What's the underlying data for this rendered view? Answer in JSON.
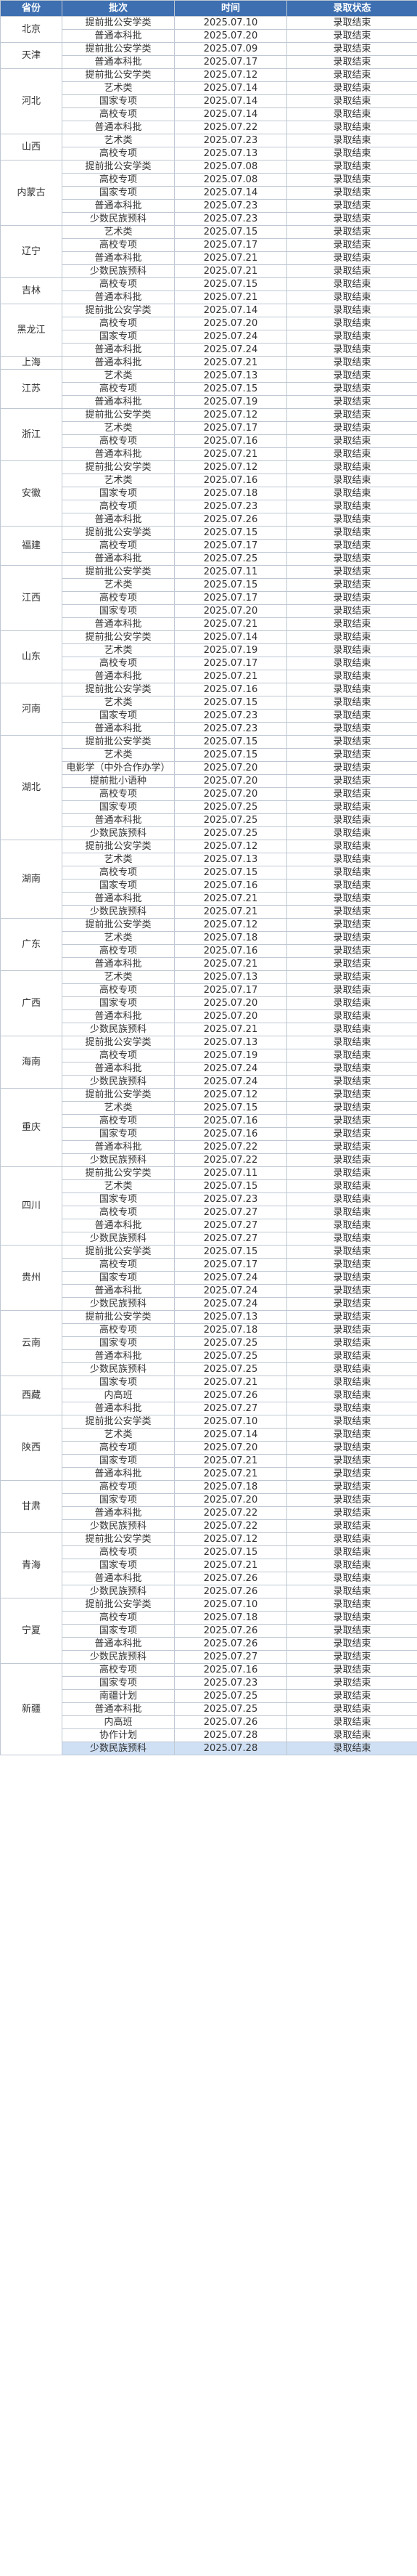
{
  "columns": [
    "省份",
    "批次",
    "时间",
    "录取状态"
  ],
  "status_text": "录取结束",
  "colors": {
    "header_bg": "#3d6fb1",
    "header_text": "#ffffff",
    "grid": "#bfc8d3",
    "highlight_row": "#cfe0f5"
  },
  "provinces": [
    {
      "name": "北京",
      "rows": [
        [
          "提前批公安学类",
          "2025.07.10"
        ],
        [
          "普通本科批",
          "2025.07.20"
        ]
      ]
    },
    {
      "name": "天津",
      "rows": [
        [
          "提前批公安学类",
          "2025.07.09"
        ],
        [
          "普通本科批",
          "2025.07.17"
        ]
      ]
    },
    {
      "name": "河北",
      "rows": [
        [
          "提前批公安学类",
          "2025.07.12"
        ],
        [
          "艺术类",
          "2025.07.14"
        ],
        [
          "国家专项",
          "2025.07.14"
        ],
        [
          "高校专项",
          "2025.07.14"
        ],
        [
          "普通本科批",
          "2025.07.22"
        ]
      ]
    },
    {
      "name": "山西",
      "rows": [
        [
          "艺术类",
          "2025.07.23"
        ],
        [
          "高校专项",
          "2025.07.13"
        ]
      ]
    },
    {
      "name": "内蒙古",
      "rows": [
        [
          "提前批公安学类",
          "2025.07.08"
        ],
        [
          "高校专项",
          "2025.07.08"
        ],
        [
          "国家专项",
          "2025.07.14"
        ],
        [
          "普通本科批",
          "2025.07.23"
        ],
        [
          "少数民族预科",
          "2025.07.23"
        ]
      ]
    },
    {
      "name": "辽宁",
      "rows": [
        [
          "艺术类",
          "2025.07.15"
        ],
        [
          "高校专项",
          "2025.07.17"
        ],
        [
          "普通本科批",
          "2025.07.21"
        ],
        [
          "少数民族预科",
          "2025.07.21"
        ]
      ]
    },
    {
      "name": "吉林",
      "rows": [
        [
          "高校专项",
          "2025.07.15"
        ],
        [
          "普通本科批",
          "2025.07.21"
        ]
      ]
    },
    {
      "name": "黑龙江",
      "rows": [
        [
          "提前批公安学类",
          "2025.07.14"
        ],
        [
          "高校专项",
          "2025.07.20"
        ],
        [
          "国家专项",
          "2025.07.24"
        ],
        [
          "普通本科批",
          "2025.07.24"
        ]
      ]
    },
    {
      "name": "上海",
      "rows": [
        [
          "普通本科批",
          "2025.07.21"
        ]
      ]
    },
    {
      "name": "江苏",
      "rows": [
        [
          "艺术类",
          "2025.07.13"
        ],
        [
          "高校专项",
          "2025.07.15"
        ],
        [
          "普通本科批",
          "2025.07.19"
        ]
      ]
    },
    {
      "name": "浙江",
      "rows": [
        [
          "提前批公安学类",
          "2025.07.12"
        ],
        [
          "艺术类",
          "2025.07.17"
        ],
        [
          "高校专项",
          "2025.07.16"
        ],
        [
          "普通本科批",
          "2025.07.21"
        ]
      ]
    },
    {
      "name": "安徽",
      "rows": [
        [
          "提前批公安学类",
          "2025.07.12"
        ],
        [
          "艺术类",
          "2025.07.16"
        ],
        [
          "国家专项",
          "2025.07.18"
        ],
        [
          "高校专项",
          "2025.07.23"
        ],
        [
          "普通本科批",
          "2025.07.26"
        ]
      ]
    },
    {
      "name": "福建",
      "rows": [
        [
          "提前批公安学类",
          "2025.07.15"
        ],
        [
          "高校专项",
          "2025.07.17"
        ],
        [
          "普通本科批",
          "2025.07.25"
        ]
      ]
    },
    {
      "name": "江西",
      "rows": [
        [
          "提前批公安学类",
          "2025.07.11"
        ],
        [
          "艺术类",
          "2025.07.15"
        ],
        [
          "高校专项",
          "2025.07.17"
        ],
        [
          "国家专项",
          "2025.07.20"
        ],
        [
          "普通本科批",
          "2025.07.21"
        ]
      ]
    },
    {
      "name": "山东",
      "rows": [
        [
          "提前批公安学类",
          "2025.07.14"
        ],
        [
          "艺术类",
          "2025.07.19"
        ],
        [
          "高校专项",
          "2025.07.17"
        ],
        [
          "普通本科批",
          "2025.07.21"
        ]
      ]
    },
    {
      "name": "河南",
      "rows": [
        [
          "提前批公安学类",
          "2025.07.16"
        ],
        [
          "艺术类",
          "2025.07.15"
        ],
        [
          "国家专项",
          "2025.07.23"
        ],
        [
          "普通本科批",
          "2025.07.23"
        ]
      ]
    },
    {
      "name": "湖北",
      "rows": [
        [
          "提前批公安学类",
          "2025.07.15"
        ],
        [
          "艺术类",
          "2025.07.15"
        ],
        [
          "电影学（中外合作办学）",
          "2025.07.20"
        ],
        [
          "提前批小语种",
          "2025.07.20"
        ],
        [
          "高校专项",
          "2025.07.20"
        ],
        [
          "国家专项",
          "2025.07.25"
        ],
        [
          "普通本科批",
          "2025.07.25"
        ],
        [
          "少数民族预科",
          "2025.07.25"
        ]
      ]
    },
    {
      "name": "湖南",
      "rows": [
        [
          "提前批公安学类",
          "2025.07.12"
        ],
        [
          "艺术类",
          "2025.07.13"
        ],
        [
          "高校专项",
          "2025.07.15"
        ],
        [
          "国家专项",
          "2025.07.16"
        ],
        [
          "普通本科批",
          "2025.07.21"
        ],
        [
          "少数民族预科",
          "2025.07.21"
        ]
      ]
    },
    {
      "name": "广东",
      "rows": [
        [
          "提前批公安学类",
          "2025.07.12"
        ],
        [
          "艺术类",
          "2025.07.18"
        ],
        [
          "高校专项",
          "2025.07.16"
        ],
        [
          "普通本科批",
          "2025.07.21"
        ]
      ]
    },
    {
      "name": "广西",
      "rows": [
        [
          "艺术类",
          "2025.07.13"
        ],
        [
          "高校专项",
          "2025.07.17"
        ],
        [
          "国家专项",
          "2025.07.20"
        ],
        [
          "普通本科批",
          "2025.07.20"
        ],
        [
          "少数民族预科",
          "2025.07.21"
        ]
      ]
    },
    {
      "name": "海南",
      "rows": [
        [
          "提前批公安学类",
          "2025.07.13"
        ],
        [
          "高校专项",
          "2025.07.19"
        ],
        [
          "普通本科批",
          "2025.07.24"
        ],
        [
          "少数民族预科",
          "2025.07.24"
        ]
      ]
    },
    {
      "name": "重庆",
      "rows": [
        [
          "提前批公安学类",
          "2025.07.12"
        ],
        [
          "艺术类",
          "2025.07.15"
        ],
        [
          "高校专项",
          "2025.07.16"
        ],
        [
          "国家专项",
          "2025.07.16"
        ],
        [
          "普通本科批",
          "2025.07.22"
        ],
        [
          "少数民族预科",
          "2025.07.22"
        ]
      ]
    },
    {
      "name": "四川",
      "rows": [
        [
          "提前批公安学类",
          "2025.07.11"
        ],
        [
          "艺术类",
          "2025.07.15"
        ],
        [
          "国家专项",
          "2025.07.23"
        ],
        [
          "高校专项",
          "2025.07.27"
        ],
        [
          "普通本科批",
          "2025.07.27"
        ],
        [
          "少数民族预科",
          "2025.07.27"
        ]
      ]
    },
    {
      "name": "贵州",
      "rows": [
        [
          "提前批公安学类",
          "2025.07.15"
        ],
        [
          "高校专项",
          "2025.07.17"
        ],
        [
          "国家专项",
          "2025.07.24"
        ],
        [
          "普通本科批",
          "2025.07.24"
        ],
        [
          "少数民族预科",
          "2025.07.24"
        ]
      ]
    },
    {
      "name": "云南",
      "rows": [
        [
          "提前批公安学类",
          "2025.07.13"
        ],
        [
          "高校专项",
          "2025.07.18"
        ],
        [
          "国家专项",
          "2025.07.25"
        ],
        [
          "普通本科批",
          "2025.07.25"
        ],
        [
          "少数民族预科",
          "2025.07.25"
        ]
      ]
    },
    {
      "name": "西藏",
      "rows": [
        [
          "国家专项",
          "2025.07.21"
        ],
        [
          "内高班",
          "2025.07.26"
        ],
        [
          "普通本科批",
          "2025.07.27"
        ]
      ]
    },
    {
      "name": "陕西",
      "rows": [
        [
          "提前批公安学类",
          "2025.07.10"
        ],
        [
          "艺术类",
          "2025.07.14"
        ],
        [
          "高校专项",
          "2025.07.20"
        ],
        [
          "国家专项",
          "2025.07.21"
        ],
        [
          "普通本科批",
          "2025.07.21"
        ]
      ]
    },
    {
      "name": "甘肃",
      "rows": [
        [
          "高校专项",
          "2025.07.18"
        ],
        [
          "国家专项",
          "2025.07.20"
        ],
        [
          "普通本科批",
          "2025.07.22"
        ],
        [
          "少数民族预科",
          "2025.07.22"
        ]
      ]
    },
    {
      "name": "青海",
      "rows": [
        [
          "提前批公安学类",
          "2025.07.12"
        ],
        [
          "高校专项",
          "2025.07.15"
        ],
        [
          "国家专项",
          "2025.07.21"
        ],
        [
          "普通本科批",
          "2025.07.26"
        ],
        [
          "少数民族预科",
          "2025.07.26"
        ]
      ]
    },
    {
      "name": "宁夏",
      "rows": [
        [
          "提前批公安学类",
          "2025.07.10"
        ],
        [
          "高校专项",
          "2025.07.18"
        ],
        [
          "国家专项",
          "2025.07.26"
        ],
        [
          "普通本科批",
          "2025.07.26"
        ],
        [
          "少数民族预科",
          "2025.07.27"
        ]
      ]
    },
    {
      "name": "新疆",
      "rows": [
        [
          "高校专项",
          "2025.07.16"
        ],
        [
          "国家专项",
          "2025.07.23"
        ],
        [
          "南疆计划",
          "2025.07.25"
        ],
        [
          "普通本科批",
          "2025.07.25"
        ],
        [
          "内高班",
          "2025.07.26"
        ],
        [
          "协作计划",
          "2025.07.28"
        ],
        [
          "少数民族预科",
          "2025.07.28"
        ]
      ]
    }
  ]
}
